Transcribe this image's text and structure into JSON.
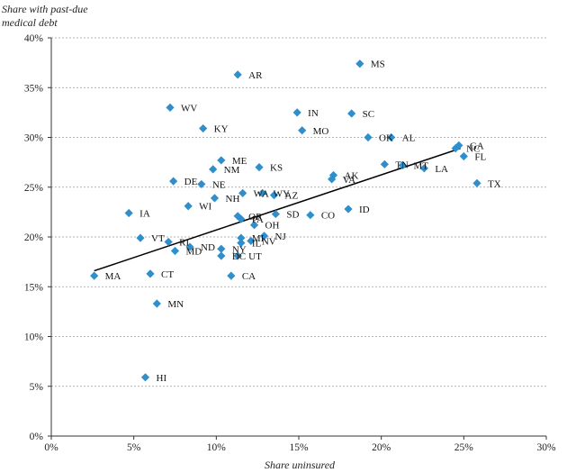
{
  "chart_data": {
    "type": "scatter",
    "title": "",
    "ylabel_lines": [
      "Share with past-due",
      "medical debt"
    ],
    "xlabel": "Share uninsured",
    "xlim": [
      0,
      30
    ],
    "ylim": [
      0,
      40
    ],
    "x_ticks": [
      0,
      5,
      10,
      15,
      20,
      25,
      30
    ],
    "y_ticks": [
      0,
      5,
      10,
      15,
      20,
      25,
      30,
      35,
      40
    ],
    "x_tick_labels": [
      "0%",
      "5%",
      "10%",
      "15%",
      "20%",
      "25%",
      "30%"
    ],
    "y_tick_labels": [
      "0%",
      "5%",
      "10%",
      "15%",
      "20%",
      "25%",
      "30%",
      "35%",
      "40%"
    ],
    "grid": "horizontal dashed",
    "trendline": {
      "x": [
        2.6,
        24.8
      ],
      "y": [
        16.6,
        28.9
      ]
    },
    "marker_color": "#2f8fcc",
    "points": [
      {
        "label": "MA",
        "x": 2.6,
        "y": 16.1
      },
      {
        "label": "HI",
        "x": 5.7,
        "y": 5.9
      },
      {
        "label": "MN",
        "x": 6.4,
        "y": 13.3
      },
      {
        "label": "CT",
        "x": 6.0,
        "y": 16.3
      },
      {
        "label": "IA",
        "x": 4.7,
        "y": 22.4
      },
      {
        "label": "VT",
        "x": 5.4,
        "y": 19.9
      },
      {
        "label": "RI",
        "x": 7.1,
        "y": 19.5
      },
      {
        "label": "MD",
        "x": 7.5,
        "y": 18.6
      },
      {
        "label": "ND",
        "x": 8.4,
        "y": 19.0
      },
      {
        "label": "WV",
        "x": 7.2,
        "y": 33.0
      },
      {
        "label": "KY",
        "x": 9.2,
        "y": 30.9
      },
      {
        "label": "DE",
        "x": 7.4,
        "y": 25.6
      },
      {
        "label": "NE",
        "x": 9.1,
        "y": 25.3
      },
      {
        "label": "WI",
        "x": 8.3,
        "y": 23.1
      },
      {
        "label": "NM",
        "x": 9.8,
        "y": 26.8
      },
      {
        "label": "ME",
        "x": 10.3,
        "y": 27.7
      },
      {
        "label": "NH",
        "x": 9.9,
        "y": 23.9
      },
      {
        "label": "WA",
        "x": 11.6,
        "y": 24.4
      },
      {
        "label": "AR",
        "x": 11.3,
        "y": 36.3
      },
      {
        "label": "NY",
        "x": 10.3,
        "y": 18.8
      },
      {
        "label": "DC",
        "x": 10.3,
        "y": 18.1
      },
      {
        "label": "CA",
        "x": 10.9,
        "y": 16.1
      },
      {
        "label": "UT",
        "x": 11.3,
        "y": 18.1
      },
      {
        "label": "MI",
        "x": 11.5,
        "y": 19.9
      },
      {
        "label": "IL",
        "x": 11.5,
        "y": 19.4
      },
      {
        "label": "NV",
        "x": 12.1,
        "y": 19.6
      },
      {
        "label": "NJ",
        "x": 12.9,
        "y": 20.1
      },
      {
        "label": "OR",
        "x": 11.3,
        "y": 22.1
      },
      {
        "label": "PA",
        "x": 11.5,
        "y": 21.8
      },
      {
        "label": "OH",
        "x": 12.3,
        "y": 21.2
      },
      {
        "label": "SD",
        "x": 13.6,
        "y": 22.3
      },
      {
        "label": "KS",
        "x": 12.6,
        "y": 27.0
      },
      {
        "label": "WY",
        "x": 12.8,
        "y": 24.4
      },
      {
        "label": "AZ",
        "x": 13.5,
        "y": 24.2
      },
      {
        "label": "CO",
        "x": 15.7,
        "y": 22.2
      },
      {
        "label": "IN",
        "x": 14.9,
        "y": 32.5
      },
      {
        "label": "MO",
        "x": 15.2,
        "y": 30.7
      },
      {
        "label": "MS",
        "x": 18.7,
        "y": 37.4
      },
      {
        "label": "SC",
        "x": 18.2,
        "y": 32.4
      },
      {
        "label": "AK",
        "x": 17.1,
        "y": 26.2
      },
      {
        "label": "VA",
        "x": 17.0,
        "y": 25.8
      },
      {
        "label": "ID",
        "x": 18.0,
        "y": 22.8
      },
      {
        "label": "OK",
        "x": 19.2,
        "y": 30.0
      },
      {
        "label": "AL",
        "x": 20.6,
        "y": 30.0
      },
      {
        "label": "TN",
        "x": 20.2,
        "y": 27.3
      },
      {
        "label": "MT",
        "x": 21.3,
        "y": 27.2
      },
      {
        "label": "LA",
        "x": 22.6,
        "y": 26.9
      },
      {
        "label": "NC",
        "x": 24.5,
        "y": 28.9
      },
      {
        "label": "GA",
        "x": 24.7,
        "y": 29.2
      },
      {
        "label": "FL",
        "x": 25.0,
        "y": 28.1
      },
      {
        "label": "TX",
        "x": 25.8,
        "y": 25.4
      }
    ]
  }
}
